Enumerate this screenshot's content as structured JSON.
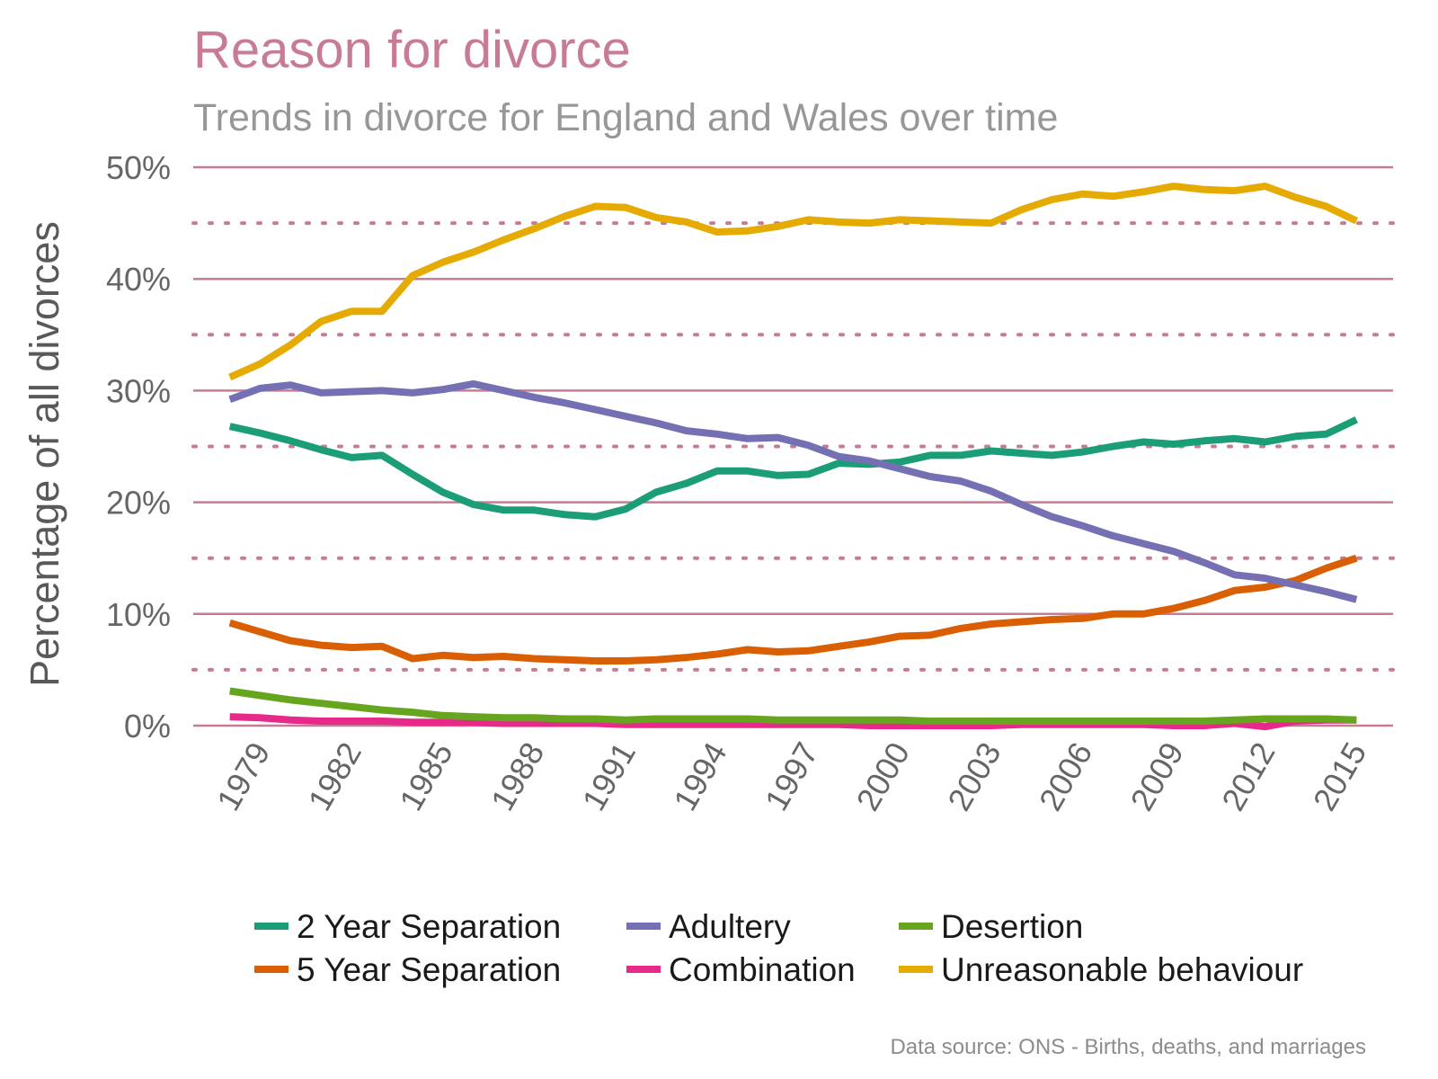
{
  "colors": {
    "title": "#c87b95",
    "subtitle": "#979797",
    "grid": "#c87b95",
    "axis_text": "#666666"
  },
  "chart_data": {
    "type": "line",
    "title": "Reason for divorce",
    "subtitle": "Trends in divorce for England and Wales over time",
    "xlabel": "",
    "ylabel": "Percentage of all divorces",
    "source": "Data source: ONS - Births, deaths, and marriages",
    "x": [
      1978,
      1979,
      1980,
      1981,
      1982,
      1983,
      1984,
      1985,
      1986,
      1987,
      1988,
      1989,
      1990,
      1991,
      1992,
      1993,
      1994,
      1995,
      1996,
      1997,
      1998,
      1999,
      2000,
      2001,
      2002,
      2003,
      2004,
      2005,
      2006,
      2007,
      2008,
      2009,
      2010,
      2011,
      2012,
      2013,
      2014,
      2015
    ],
    "xticks": [
      "1979",
      "1982",
      "1985",
      "1988",
      "1991",
      "1994",
      "1997",
      "2000",
      "2003",
      "2006",
      "2009",
      "2012",
      "2015"
    ],
    "xlim": [
      1976.8,
      2016.2
    ],
    "ylim": [
      0,
      50
    ],
    "yticks": [
      0,
      10,
      20,
      30,
      40,
      50
    ],
    "ytick_labels": [
      "0%",
      "10%",
      "20%",
      "30%",
      "40%",
      "50%"
    ],
    "minor_grid": [
      5,
      15,
      25,
      35,
      45
    ],
    "grid": true,
    "legend_position": "bottom",
    "series": [
      {
        "name": "2 Year Separation",
        "color": "#1b9e77",
        "values": [
          26.8,
          26.2,
          25.5,
          24.7,
          24.0,
          24.2,
          22.5,
          20.9,
          19.8,
          19.3,
          19.3,
          18.9,
          18.7,
          19.4,
          20.9,
          21.7,
          22.8,
          22.8,
          22.4,
          22.5,
          23.5,
          23.4,
          23.6,
          24.2,
          24.2,
          24.6,
          24.4,
          24.2,
          24.5,
          25.0,
          25.4,
          25.2,
          25.5,
          25.7,
          25.4,
          25.9,
          26.1,
          27.4
        ]
      },
      {
        "name": "5 Year Separation",
        "color": "#d95f02",
        "values": [
          9.2,
          8.4,
          7.6,
          7.2,
          7.0,
          7.1,
          6.0,
          6.3,
          6.1,
          6.2,
          6.0,
          5.9,
          5.8,
          5.8,
          5.9,
          6.1,
          6.4,
          6.8,
          6.6,
          6.7,
          7.1,
          7.5,
          8.0,
          8.1,
          8.7,
          9.1,
          9.3,
          9.5,
          9.6,
          10.0,
          10.0,
          10.5,
          11.2,
          12.1,
          12.4,
          13.0,
          14.1,
          15.0
        ]
      },
      {
        "name": "Adultery",
        "color": "#7570b3",
        "values": [
          29.2,
          30.2,
          30.5,
          29.8,
          29.9,
          30.0,
          29.8,
          30.1,
          30.6,
          30.0,
          29.4,
          28.9,
          28.3,
          27.7,
          27.1,
          26.4,
          26.1,
          25.7,
          25.8,
          25.1,
          24.1,
          23.7,
          23.0,
          22.3,
          21.9,
          21.0,
          19.8,
          18.7,
          17.9,
          17.0,
          16.3,
          15.6,
          14.6,
          13.5,
          13.2,
          12.6,
          12.0,
          11.3
        ]
      },
      {
        "name": "Combination",
        "color": "#e7298a",
        "values": [
          0.8,
          0.7,
          0.5,
          0.4,
          0.4,
          0.4,
          0.3,
          0.3,
          0.3,
          0.2,
          0.2,
          0.2,
          0.2,
          0.1,
          0.1,
          0.1,
          0.1,
          0.1,
          0.1,
          0.1,
          0.1,
          0.0,
          0.0,
          0.0,
          0.0,
          0.0,
          0.1,
          0.1,
          0.1,
          0.1,
          0.1,
          0.0,
          0.0,
          0.2,
          -0.1,
          0.4,
          0.5,
          0.5
        ]
      },
      {
        "name": "Desertion",
        "color": "#66a61e",
        "values": [
          3.1,
          2.7,
          2.3,
          2.0,
          1.7,
          1.4,
          1.2,
          0.9,
          0.8,
          0.7,
          0.7,
          0.6,
          0.6,
          0.5,
          0.6,
          0.6,
          0.6,
          0.6,
          0.5,
          0.5,
          0.5,
          0.5,
          0.5,
          0.4,
          0.4,
          0.4,
          0.4,
          0.4,
          0.4,
          0.4,
          0.4,
          0.4,
          0.4,
          0.5,
          0.6,
          0.6,
          0.6,
          0.5
        ]
      },
      {
        "name": "Unreasonable behaviour",
        "color": "#e6ab02",
        "values": [
          31.2,
          32.4,
          34.1,
          36.2,
          37.1,
          37.1,
          40.3,
          41.5,
          42.4,
          43.5,
          44.5,
          45.6,
          46.5,
          46.4,
          45.5,
          45.1,
          44.2,
          44.3,
          44.7,
          45.3,
          45.1,
          45.0,
          45.3,
          45.2,
          45.1,
          45.0,
          46.2,
          47.1,
          47.6,
          47.4,
          47.8,
          48.3,
          48.0,
          47.9,
          48.3,
          47.3,
          46.5,
          45.2
        ]
      }
    ],
    "legend_order": [
      "2 Year Separation",
      "Adultery",
      "Desertion",
      "5 Year Separation",
      "Combination",
      "Unreasonable behaviour"
    ]
  }
}
